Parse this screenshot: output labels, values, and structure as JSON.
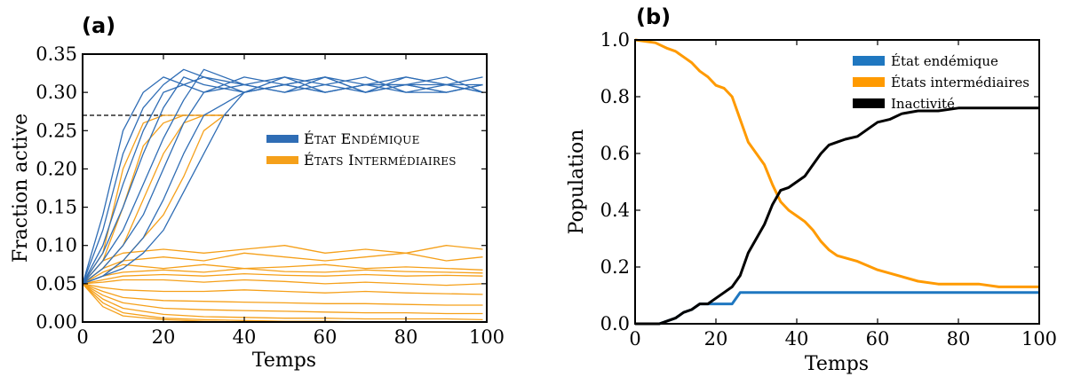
{
  "figure": {
    "panel_a_label": "(a)",
    "panel_b_label": "(b)"
  },
  "colors": {
    "blue": "#2f6db5",
    "orange": "#f5a01a",
    "black": "#000000",
    "orange_b": "#ff9a00",
    "blue_b": "#1f77c0"
  },
  "chart_data": [
    {
      "id": "a",
      "type": "line",
      "title": "",
      "xlabel": "Temps",
      "ylabel": "Fraction active",
      "xlim": [
        0,
        100
      ],
      "ylim": [
        0,
        0.35
      ],
      "xticks": [
        "0",
        "20",
        "40",
        "60",
        "80",
        "100"
      ],
      "yticks": [
        "0.00",
        "0.05",
        "0.10",
        "0.15",
        "0.20",
        "0.25",
        "0.30",
        "0.35"
      ],
      "threshold": 0.27,
      "legend": {
        "placement": "center-right",
        "entries": [
          {
            "name": "État Endémique",
            "color": "#2f6db5"
          },
          {
            "name": "États Intermédiaires",
            "color": "#f5a01a"
          }
        ]
      },
      "series": [
        {
          "group": "endemic",
          "x": [
            0,
            5,
            10,
            15,
            20,
            25,
            30,
            40,
            50,
            60,
            70,
            80,
            90,
            99
          ],
          "y": [
            0.05,
            0.14,
            0.25,
            0.3,
            0.32,
            0.31,
            0.3,
            0.31,
            0.32,
            0.3,
            0.31,
            0.31,
            0.3,
            0.31
          ]
        },
        {
          "group": "endemic",
          "x": [
            0,
            5,
            10,
            15,
            20,
            25,
            30,
            40,
            50,
            60,
            70,
            80,
            90,
            99
          ],
          "y": [
            0.05,
            0.12,
            0.22,
            0.28,
            0.31,
            0.33,
            0.32,
            0.3,
            0.31,
            0.32,
            0.3,
            0.32,
            0.31,
            0.3
          ]
        },
        {
          "group": "endemic",
          "x": [
            0,
            5,
            10,
            15,
            20,
            25,
            30,
            40,
            50,
            60,
            70,
            80,
            90,
            99
          ],
          "y": [
            0.05,
            0.1,
            0.18,
            0.25,
            0.3,
            0.31,
            0.32,
            0.31,
            0.3,
            0.31,
            0.32,
            0.3,
            0.31,
            0.32
          ]
        },
        {
          "group": "endemic",
          "x": [
            0,
            5,
            10,
            15,
            20,
            25,
            30,
            40,
            50,
            60,
            70,
            80,
            90,
            99
          ],
          "y": [
            0.05,
            0.09,
            0.15,
            0.22,
            0.28,
            0.32,
            0.31,
            0.3,
            0.31,
            0.3,
            0.31,
            0.31,
            0.32,
            0.3
          ]
        },
        {
          "group": "endemic",
          "x": [
            0,
            5,
            10,
            15,
            20,
            25,
            30,
            40,
            50,
            60,
            70,
            80,
            90,
            99
          ],
          "y": [
            0.05,
            0.08,
            0.12,
            0.18,
            0.24,
            0.29,
            0.33,
            0.31,
            0.3,
            0.32,
            0.31,
            0.3,
            0.3,
            0.31
          ]
        },
        {
          "group": "endemic",
          "x": [
            0,
            5,
            10,
            15,
            20,
            25,
            30,
            40,
            50,
            60,
            70,
            80,
            90,
            99
          ],
          "y": [
            0.05,
            0.07,
            0.1,
            0.14,
            0.2,
            0.26,
            0.3,
            0.32,
            0.31,
            0.3,
            0.31,
            0.32,
            0.31,
            0.3
          ]
        },
        {
          "group": "endemic",
          "x": [
            0,
            5,
            10,
            15,
            20,
            25,
            30,
            40,
            50,
            60,
            70,
            80,
            90,
            99
          ],
          "y": [
            0.05,
            0.06,
            0.08,
            0.11,
            0.16,
            0.22,
            0.27,
            0.3,
            0.32,
            0.31,
            0.3,
            0.31,
            0.31,
            0.31
          ]
        },
        {
          "group": "endemic",
          "x": [
            0,
            5,
            10,
            15,
            20,
            25,
            30,
            35,
            40,
            50,
            60,
            70,
            80,
            90,
            99
          ],
          "y": [
            0.05,
            0.06,
            0.07,
            0.09,
            0.12,
            0.17,
            0.22,
            0.27,
            0.3,
            0.31,
            0.32,
            0.3,
            0.31,
            0.3,
            0.31
          ]
        },
        {
          "group": "intermediate",
          "x": [
            0,
            5,
            10,
            20,
            30,
            40,
            50,
            60,
            70,
            80,
            90,
            99
          ],
          "y": [
            0.05,
            0.08,
            0.09,
            0.095,
            0.09,
            0.095,
            0.1,
            0.09,
            0.095,
            0.09,
            0.1,
            0.095
          ]
        },
        {
          "group": "intermediate",
          "x": [
            0,
            5,
            10,
            20,
            30,
            40,
            50,
            60,
            70,
            80,
            90,
            99
          ],
          "y": [
            0.05,
            0.07,
            0.08,
            0.085,
            0.08,
            0.09,
            0.085,
            0.08,
            0.085,
            0.09,
            0.08,
            0.085
          ]
        },
        {
          "group": "intermediate",
          "x": [
            0,
            5,
            10,
            20,
            30,
            40,
            50,
            60,
            70,
            80,
            90,
            99
          ],
          "y": [
            0.05,
            0.065,
            0.075,
            0.07,
            0.075,
            0.07,
            0.072,
            0.075,
            0.07,
            0.072,
            0.07,
            0.068
          ]
        },
        {
          "group": "intermediate",
          "x": [
            0,
            5,
            10,
            20,
            30,
            40,
            50,
            60,
            70,
            80,
            90,
            99
          ],
          "y": [
            0.05,
            0.06,
            0.065,
            0.068,
            0.065,
            0.07,
            0.066,
            0.065,
            0.068,
            0.066,
            0.065,
            0.064
          ]
        },
        {
          "group": "intermediate",
          "x": [
            0,
            5,
            10,
            20,
            30,
            40,
            50,
            60,
            70,
            80,
            90,
            99
          ],
          "y": [
            0.05,
            0.055,
            0.06,
            0.062,
            0.06,
            0.063,
            0.061,
            0.06,
            0.062,
            0.06,
            0.061,
            0.06
          ]
        },
        {
          "group": "intermediate",
          "x": [
            0,
            5,
            10,
            20,
            30,
            40,
            50,
            60,
            70,
            80,
            90,
            99
          ],
          "y": [
            0.05,
            0.052,
            0.055,
            0.055,
            0.052,
            0.055,
            0.053,
            0.05,
            0.052,
            0.05,
            0.048,
            0.05
          ]
        },
        {
          "group": "intermediate",
          "x": [
            0,
            5,
            10,
            20,
            30,
            40,
            50,
            60,
            70,
            80,
            90,
            99
          ],
          "y": [
            0.05,
            0.045,
            0.042,
            0.04,
            0.04,
            0.042,
            0.04,
            0.038,
            0.04,
            0.038,
            0.037,
            0.036
          ]
        },
        {
          "group": "intermediate",
          "x": [
            0,
            5,
            10,
            20,
            30,
            40,
            50,
            60,
            70,
            80,
            90,
            99
          ],
          "y": [
            0.05,
            0.04,
            0.032,
            0.028,
            0.027,
            0.026,
            0.025,
            0.024,
            0.024,
            0.023,
            0.022,
            0.022
          ]
        },
        {
          "group": "intermediate",
          "x": [
            0,
            5,
            10,
            20,
            30,
            40,
            50,
            60,
            70,
            80,
            90,
            99
          ],
          "y": [
            0.05,
            0.035,
            0.025,
            0.018,
            0.016,
            0.015,
            0.014,
            0.013,
            0.012,
            0.012,
            0.011,
            0.011
          ]
        },
        {
          "group": "intermediate",
          "x": [
            0,
            5,
            10,
            20,
            30,
            40,
            50,
            60,
            70,
            80,
            90,
            99
          ],
          "y": [
            0.05,
            0.03,
            0.018,
            0.01,
            0.007,
            0.006,
            0.005,
            0.005,
            0.004,
            0.004,
            0.004,
            0.003
          ]
        },
        {
          "group": "intermediate",
          "x": [
            0,
            5,
            10,
            20,
            30,
            40,
            50,
            60,
            70,
            80,
            90,
            99
          ],
          "y": [
            0.05,
            0.025,
            0.012,
            0.005,
            0.003,
            0.002,
            0.001,
            0.001,
            0.0,
            0.0,
            0.0,
            0.0
          ]
        },
        {
          "group": "intermediate",
          "x": [
            0,
            5,
            10,
            20,
            30,
            40,
            50,
            60,
            70,
            80,
            90,
            99
          ],
          "y": [
            0.05,
            0.02,
            0.008,
            0.003,
            0.001,
            0.0,
            0.0,
            0.0,
            0.0,
            0.0,
            0.0,
            0.0
          ]
        },
        {
          "group": "intermediate",
          "x": [
            0,
            5,
            10,
            15,
            20,
            25,
            30,
            35
          ],
          "y": [
            0.05,
            0.09,
            0.2,
            0.26,
            0.27,
            0.27,
            0.27,
            0.27
          ]
        },
        {
          "group": "intermediate",
          "x": [
            0,
            5,
            10,
            15,
            20,
            25,
            30,
            35
          ],
          "y": [
            0.05,
            0.08,
            0.15,
            0.23,
            0.26,
            0.27,
            0.27,
            0.27
          ]
        },
        {
          "group": "intermediate",
          "x": [
            0,
            5,
            10,
            15,
            20,
            25,
            30,
            35
          ],
          "y": [
            0.05,
            0.07,
            0.1,
            0.16,
            0.22,
            0.26,
            0.27,
            0.27
          ]
        },
        {
          "group": "intermediate",
          "x": [
            0,
            5,
            10,
            15,
            20,
            25,
            30,
            35
          ],
          "y": [
            0.05,
            0.06,
            0.08,
            0.11,
            0.14,
            0.19,
            0.25,
            0.27
          ]
        }
      ]
    },
    {
      "id": "b",
      "type": "line",
      "title": "",
      "xlabel": "Temps",
      "ylabel": "Population",
      "xlim": [
        0,
        100
      ],
      "ylim": [
        0,
        1.0
      ],
      "xticks": [
        "0",
        "20",
        "40",
        "60",
        "80",
        "100"
      ],
      "yticks": [
        "0.0",
        "0.2",
        "0.4",
        "0.6",
        "0.8",
        "1.0"
      ],
      "legend": {
        "placement": "top-right",
        "entries": [
          {
            "name": "État endémique",
            "color": "#1f77c0"
          },
          {
            "name": "États intermédiaires",
            "color": "#ff9a00"
          },
          {
            "name": "Inactivité",
            "color": "#000000"
          }
        ]
      },
      "series": [
        {
          "name": "État endémique",
          "x": [
            0,
            6,
            8,
            10,
            12,
            14,
            16,
            18,
            20,
            22,
            24,
            26,
            28,
            40,
            60,
            80,
            100
          ],
          "y": [
            0.0,
            0.0,
            0.01,
            0.02,
            0.04,
            0.05,
            0.07,
            0.07,
            0.07,
            0.07,
            0.07,
            0.11,
            0.11,
            0.11,
            0.11,
            0.11,
            0.11
          ]
        },
        {
          "name": "États intermédiaires",
          "x": [
            0,
            5,
            8,
            10,
            12,
            14,
            16,
            18,
            20,
            22,
            24,
            26,
            28,
            30,
            32,
            34,
            36,
            38,
            40,
            42,
            44,
            46,
            48,
            50,
            55,
            60,
            65,
            70,
            75,
            80,
            85,
            90,
            100
          ],
          "y": [
            1.0,
            0.99,
            0.97,
            0.96,
            0.94,
            0.92,
            0.89,
            0.87,
            0.84,
            0.83,
            0.8,
            0.72,
            0.64,
            0.6,
            0.56,
            0.49,
            0.43,
            0.4,
            0.38,
            0.36,
            0.33,
            0.29,
            0.26,
            0.24,
            0.22,
            0.19,
            0.17,
            0.15,
            0.14,
            0.14,
            0.14,
            0.13,
            0.13
          ]
        },
        {
          "name": "Inactivité",
          "x": [
            0,
            6,
            8,
            10,
            12,
            14,
            16,
            18,
            20,
            22,
            24,
            26,
            28,
            30,
            32,
            34,
            36,
            38,
            40,
            42,
            44,
            46,
            48,
            50,
            52,
            55,
            58,
            60,
            63,
            66,
            70,
            75,
            80,
            85,
            90,
            100
          ],
          "y": [
            0.0,
            0.0,
            0.01,
            0.02,
            0.04,
            0.05,
            0.07,
            0.07,
            0.09,
            0.11,
            0.13,
            0.17,
            0.25,
            0.3,
            0.35,
            0.42,
            0.47,
            0.48,
            0.5,
            0.52,
            0.56,
            0.6,
            0.63,
            0.64,
            0.65,
            0.66,
            0.69,
            0.71,
            0.72,
            0.74,
            0.75,
            0.75,
            0.76,
            0.76,
            0.76,
            0.76
          ]
        }
      ]
    }
  ]
}
